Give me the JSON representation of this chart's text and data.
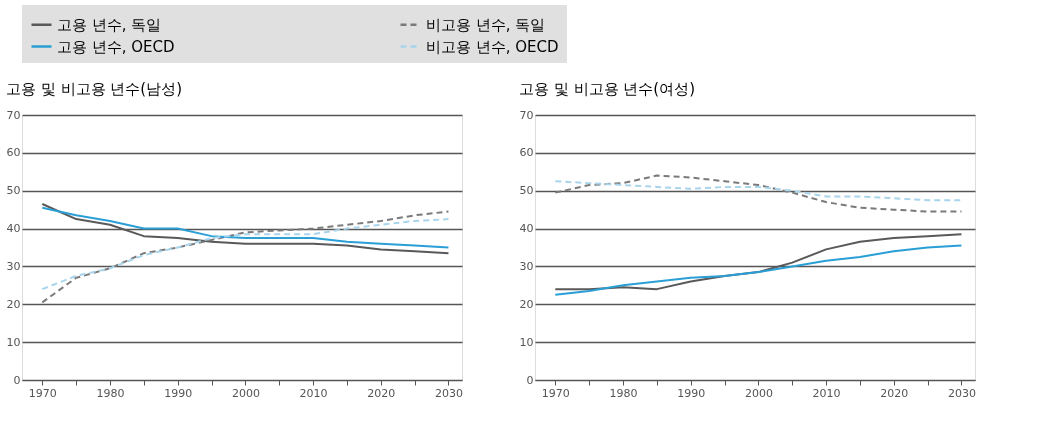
{
  "chart_data": [
    {
      "type": "line",
      "title": "고용 및 비고용 년수(남성)",
      "x": [
        1970,
        1975,
        1980,
        1985,
        1990,
        1995,
        2000,
        2005,
        2010,
        2015,
        2020,
        2025,
        2030
      ],
      "series": [
        {
          "name": "고용 년수, 독일",
          "color": "#595959",
          "line_style": "solid",
          "values": [
            46.5,
            42.5,
            41,
            38,
            37.5,
            36.5,
            36,
            36,
            36,
            35.5,
            34.5,
            34,
            33.5
          ]
        },
        {
          "name": "비고용 년수, 독일",
          "color": "#7a7a7a",
          "line_style": "dashed",
          "values": [
            20.5,
            27,
            29.5,
            33.5,
            35,
            37,
            39,
            39.5,
            40,
            41,
            42,
            43.5,
            44.5
          ]
        },
        {
          "name": "고용 년수, OECD",
          "color": "#2a9fd6",
          "line_style": "solid",
          "values": [
            45.5,
            43.5,
            42,
            40,
            40,
            38,
            37.5,
            37.5,
            37.5,
            36.5,
            36,
            35.5,
            35
          ]
        },
        {
          "name": "비고용 년수, OECD",
          "color": "#a8d4ec",
          "line_style": "dashed",
          "values": [
            24,
            27.5,
            29.5,
            33,
            35,
            37.5,
            38.5,
            38.5,
            38.5,
            40,
            41,
            42,
            42.5
          ]
        }
      ],
      "xlim": [
        1967,
        2032
      ],
      "ylim": [
        0,
        70
      ],
      "yticks": [
        0,
        10,
        20,
        30,
        40,
        50,
        60,
        70
      ],
      "xticks": [
        1970,
        {
          "value": 1975,
          "label": null
        },
        1980,
        {
          "value": 1985,
          "label": null
        },
        1990,
        {
          "value": 1995,
          "label": null
        },
        2000,
        {
          "value": 2005,
          "label": null
        },
        2010,
        {
          "value": 2015,
          "label": null
        },
        2020,
        {
          "value": 2025,
          "label": null
        },
        2030
      ],
      "grid": "y",
      "legend": "top"
    },
    {
      "type": "line",
      "title": "고용 및 비고용 년수(여성)",
      "x": [
        1970,
        1975,
        1980,
        1985,
        1990,
        1995,
        2000,
        2005,
        2010,
        2015,
        2020,
        2025,
        2030
      ],
      "series": [
        {
          "name": "고용 년수, 독일",
          "color": "#595959",
          "line_style": "solid",
          "values": [
            24,
            24,
            24.5,
            24,
            26,
            27.5,
            28.5,
            31,
            34.5,
            36.5,
            37.5,
            38,
            38.5
          ]
        },
        {
          "name": "비고용 년수, 독일",
          "color": "#7a7a7a",
          "line_style": "dashed",
          "values": [
            49.5,
            51.5,
            52,
            54,
            53.5,
            52.5,
            51.5,
            49.5,
            47,
            45.5,
            45,
            44.5,
            44.5
          ]
        },
        {
          "name": "고용 년수, OECD",
          "color": "#2a9fd6",
          "line_style": "solid",
          "values": [
            22.5,
            23.5,
            25,
            26,
            27,
            27.5,
            28.5,
            30,
            31.5,
            32.5,
            34,
            35,
            35.5
          ]
        },
        {
          "name": "비고용 년수, OECD",
          "color": "#a8d4ec",
          "line_style": "dashed",
          "values": [
            52.5,
            52,
            51.5,
            51,
            50.5,
            51,
            51,
            50,
            48.5,
            48.5,
            48,
            47.5,
            47.5
          ]
        }
      ],
      "xlim": [
        1967,
        2032
      ],
      "ylim": [
        0,
        70
      ],
      "yticks": [
        0,
        10,
        20,
        30,
        40,
        50,
        60,
        70
      ],
      "xticks": [
        1970,
        {
          "value": 1975,
          "label": null
        },
        1980,
        {
          "value": 1985,
          "label": null
        },
        1990,
        {
          "value": 1995,
          "label": null
        },
        2000,
        {
          "value": 2005,
          "label": null
        },
        2010,
        {
          "value": 2015,
          "label": null
        },
        2020,
        {
          "value": 2025,
          "label": null
        },
        2030
      ],
      "grid": "y",
      "legend": "top"
    }
  ]
}
